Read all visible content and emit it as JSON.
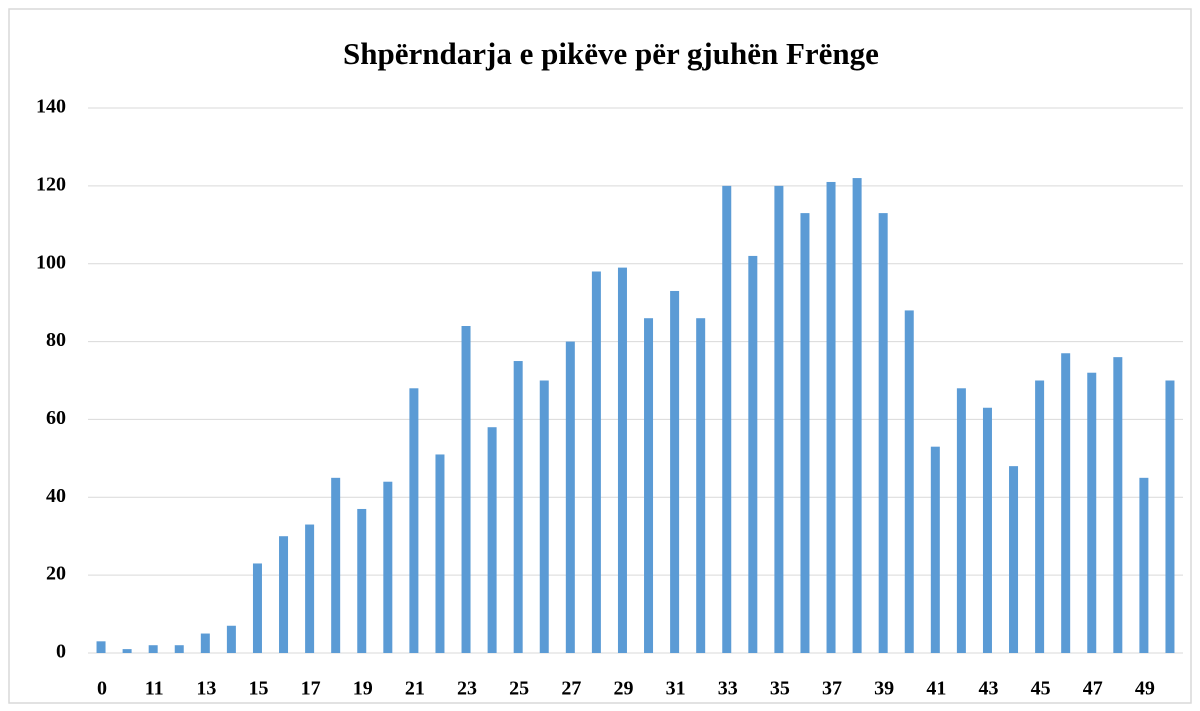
{
  "chart_data": {
    "type": "bar",
    "title": "Shpërndarja e pikëve për gjuhën Frënge",
    "categories": [
      "0",
      null,
      "11",
      null,
      "13",
      null,
      "15",
      null,
      "17",
      null,
      "19",
      null,
      "21",
      null,
      "23",
      null,
      "25",
      null,
      "27",
      null,
      "29",
      null,
      "31",
      null,
      "33",
      null,
      "35",
      null,
      "37",
      null,
      "39",
      null,
      "41",
      null,
      "43",
      null,
      "45",
      null,
      "47",
      null,
      "49",
      null
    ],
    "values": [
      3,
      1,
      2,
      2,
      5,
      7,
      23,
      30,
      33,
      45,
      37,
      44,
      68,
      51,
      84,
      58,
      75,
      70,
      80,
      98,
      99,
      86,
      93,
      86,
      120,
      102,
      120,
      113,
      121,
      122,
      113,
      88,
      53,
      68,
      63,
      48,
      70,
      77,
      72,
      76,
      45,
      70
    ],
    "color": "#5b9bd5",
    "ylim": [
      0,
      140
    ],
    "yticks": [
      0,
      20,
      40,
      60,
      80,
      100,
      120,
      140
    ],
    "grid": true
  }
}
